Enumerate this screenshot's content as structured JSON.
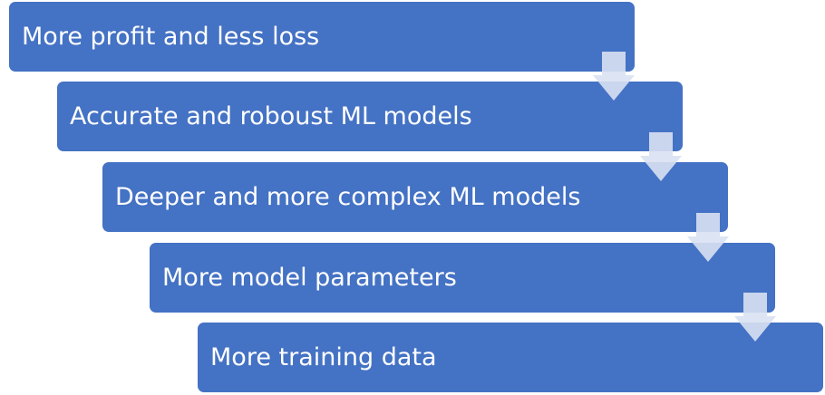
{
  "diagram": {
    "steps": [
      {
        "label": "More profit and less loss"
      },
      {
        "label": "Accurate and roboust ML models"
      },
      {
        "label": "Deeper and more complex ML models"
      },
      {
        "label": "More model parameters"
      },
      {
        "label": "More training data"
      }
    ]
  },
  "colors": {
    "box_fill": "#4472c4",
    "box_text": "#ffffff",
    "arrow_fill": "#d9e1f2"
  }
}
